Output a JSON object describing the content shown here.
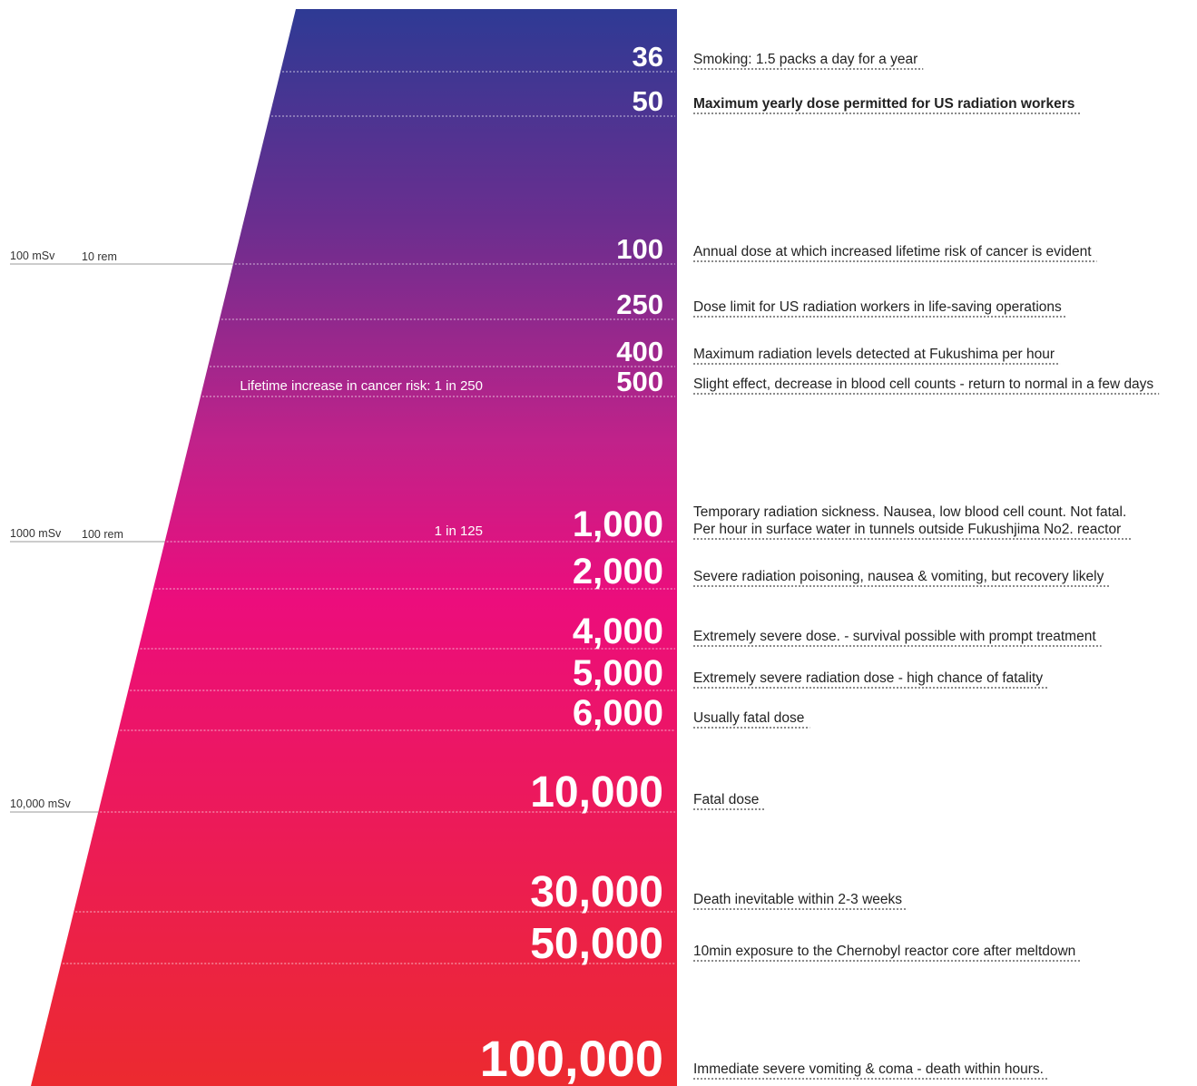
{
  "chart_data": {
    "type": "table",
    "unit": "mSv",
    "colors": {
      "gradient_top": "#2e3a94",
      "gradient_mid1": "#6b2e8f",
      "gradient_mid2": "#c0228a",
      "gradient_mid3": "#ec0d7c",
      "gradient_bottom": "#ec2a2f",
      "value_text": "#ffffff",
      "description_text": "#222222",
      "dotted_line": "#444444"
    },
    "doses": [
      {
        "value": 36,
        "label": "36",
        "description": "Smoking: 1.5 packs a day for a year",
        "bold": false
      },
      {
        "value": 50,
        "label": "50",
        "description": "Maximum yearly dose permitted for US radiation workers",
        "bold": true
      },
      {
        "value": 100,
        "label": "100",
        "description": "Annual dose at which increased lifetime risk of cancer is evident",
        "bold": false
      },
      {
        "value": 250,
        "label": "250",
        "description": "Dose limit for US radiation workers in life-saving operations",
        "bold": false
      },
      {
        "value": 400,
        "label": "400",
        "description": "Maximum radiation levels detected at Fukushima per hour",
        "bold": false
      },
      {
        "value": 500,
        "label": "500",
        "description": "Slight effect, decrease in blood cell counts - return to normal in a few days",
        "bold": false
      },
      {
        "value": 1000,
        "label": "1,000",
        "description": "Temporary radiation sickness. Nausea, low blood cell count. Not fatal.",
        "description2": "Per hour in surface water in tunnels outside Fukushjima No2. reactor",
        "bold": false
      },
      {
        "value": 2000,
        "label": "2,000",
        "description": "Severe radiation poisoning, nausea & vomiting, but recovery likely",
        "bold": false
      },
      {
        "value": 4000,
        "label": "4,000",
        "description": "Extremely severe dose. - survival possible with prompt treatment",
        "bold": false
      },
      {
        "value": 5000,
        "label": "5,000",
        "description": "Extremely severe radiation dose - high chance of fatality",
        "bold": false
      },
      {
        "value": 6000,
        "label": "6,000",
        "description": "Usually fatal dose",
        "bold": false
      },
      {
        "value": 10000,
        "label": "10,000",
        "description": "Fatal dose",
        "bold": false
      },
      {
        "value": 30000,
        "label": "30,000",
        "description": "Death inevitable within 2-3 weeks",
        "bold": false
      },
      {
        "value": 50000,
        "label": "50,000",
        "description": "10min exposure to the Chernobyl reactor core after meltdown",
        "bold": false
      },
      {
        "value": 100000,
        "label": "100,000",
        "description": "Immediate severe vomiting  & coma - death within hours.",
        "bold": false
      }
    ],
    "scale_marks": [
      {
        "value": 100,
        "msv_label": "100 mSv",
        "rem_label": "10 rem"
      },
      {
        "value": 1000,
        "msv_label": "1000 mSv",
        "rem_label": "100 rem"
      },
      {
        "value": 10000,
        "msv_label": "10,000 mSv",
        "rem_label": ""
      }
    ],
    "risk_notes": [
      {
        "value": 500,
        "text": "Lifetime increase in cancer risk:  1 in 250"
      },
      {
        "value": 1000,
        "text": "1 in 125"
      }
    ]
  }
}
